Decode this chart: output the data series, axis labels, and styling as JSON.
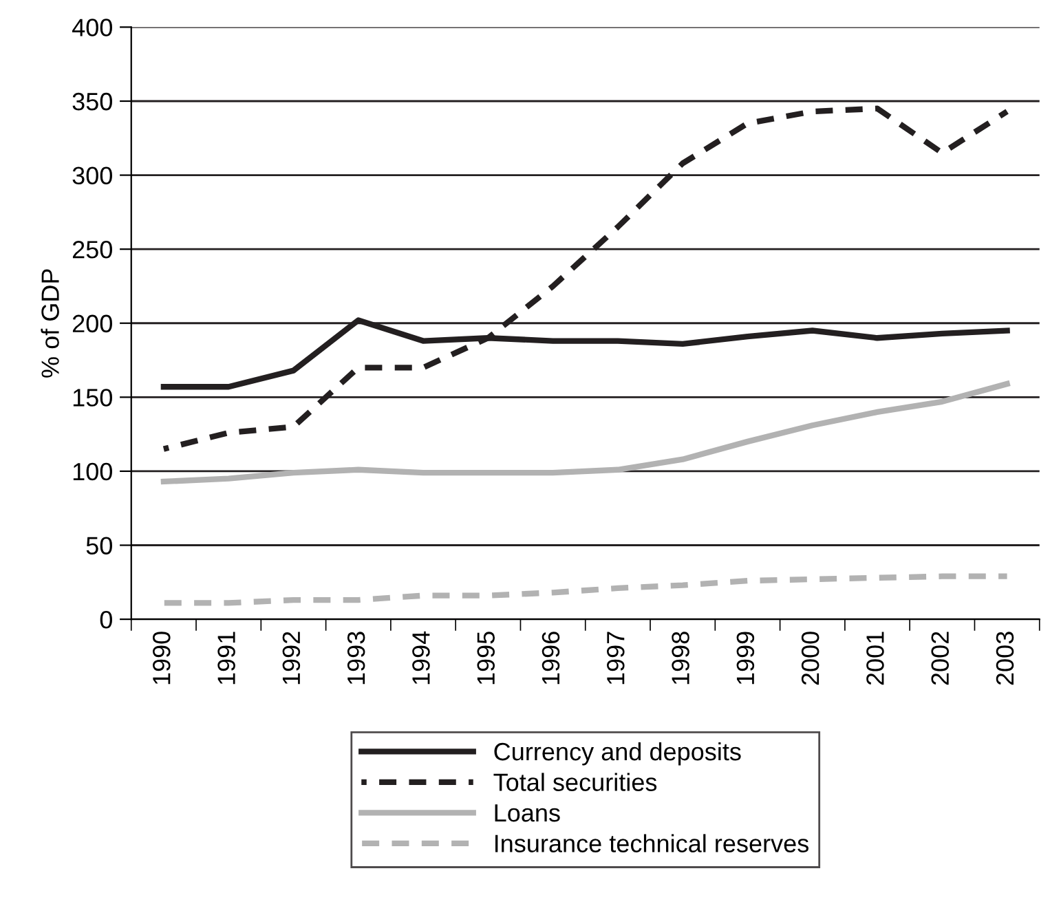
{
  "chart_data": {
    "type": "line",
    "ylabel": "% of GDP",
    "categories": [
      "1990",
      "1991",
      "1992",
      "1993",
      "1994",
      "1995",
      "1996",
      "1997",
      "1998",
      "1999",
      "2000",
      "2001",
      "2002",
      "2003"
    ],
    "series": [
      {
        "name": "Currency and deposits",
        "color": "#231f20",
        "line_style": "solid",
        "values": [
          157,
          157,
          168,
          202,
          188,
          190,
          188,
          188,
          186,
          191,
          195,
          190,
          193,
          195
        ]
      },
      {
        "name": "Total securities",
        "color": "#231f20",
        "line_style": "dashed",
        "values": [
          115,
          126,
          130,
          170,
          170,
          190,
          225,
          265,
          308,
          335,
          343,
          345,
          315,
          343
        ]
      },
      {
        "name": "Loans",
        "color": "#b2b2b2",
        "line_style": "solid",
        "values": [
          93,
          95,
          99,
          101,
          99,
          99,
          99,
          101,
          108,
          120,
          131,
          140,
          147,
          159
        ]
      },
      {
        "name": "Insurance technical reserves",
        "color": "#b2b2b2",
        "line_style": "dashed",
        "values": [
          11,
          11,
          13,
          13,
          16,
          16,
          18,
          21,
          23,
          26,
          27,
          28,
          29,
          29
        ]
      }
    ],
    "ylim": [
      0,
      400
    ],
    "yticks": [
      0,
      50,
      100,
      150,
      200,
      250,
      300,
      350,
      400
    ],
    "grid": "y",
    "legend": "bottom",
    "marker": "none"
  }
}
